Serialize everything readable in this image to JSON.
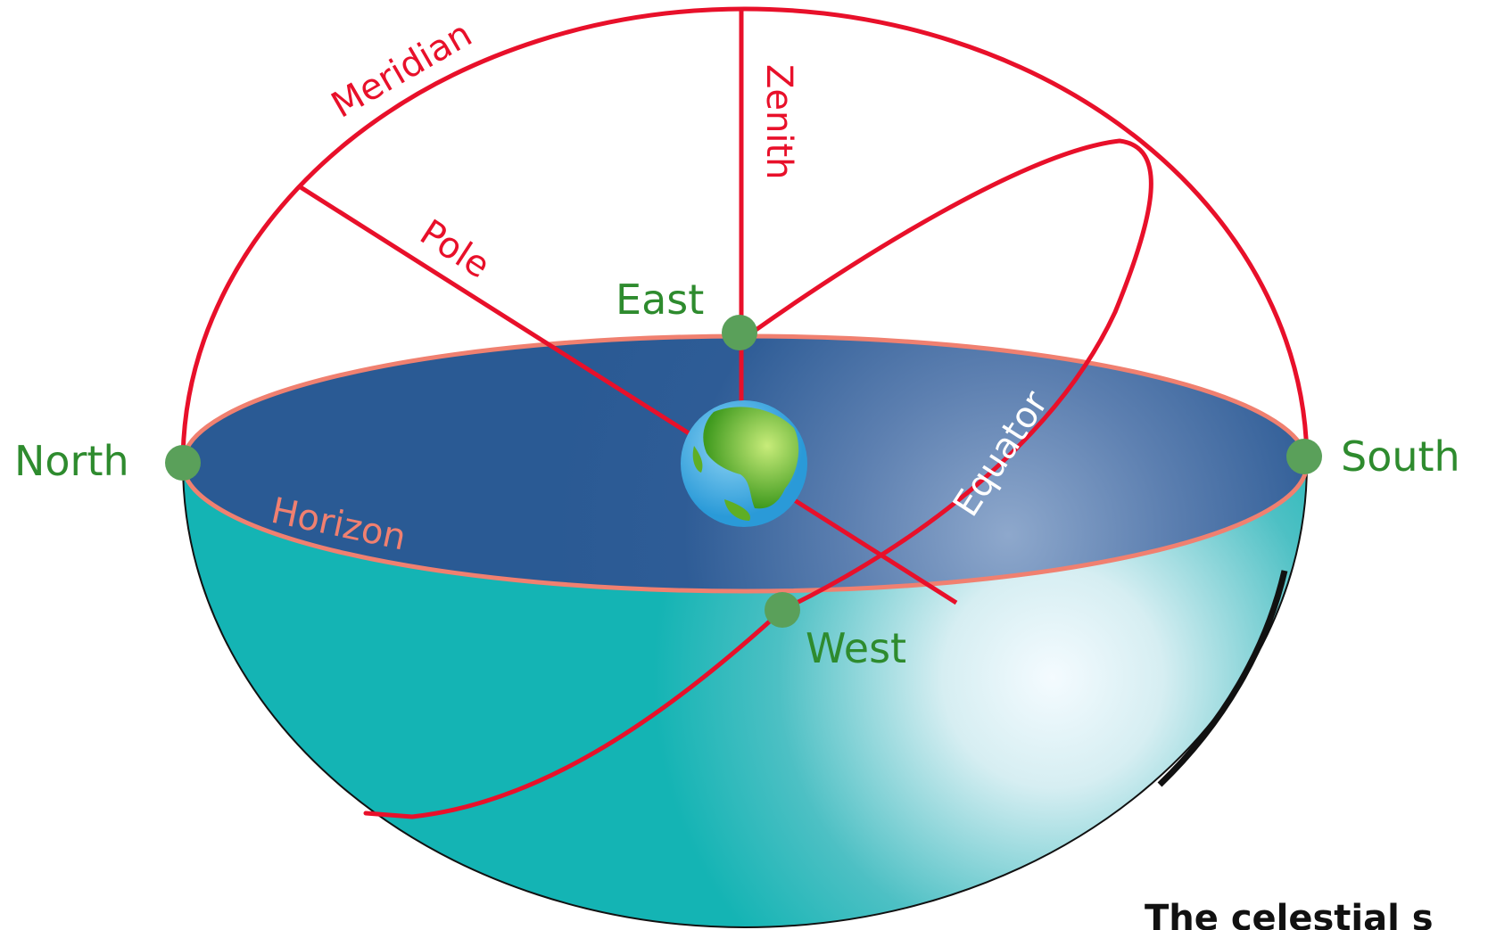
{
  "labels": {
    "meridian": "Meridian",
    "zenith": "Zenith",
    "pole": "Pole",
    "east": "East",
    "west": "West",
    "north": "North",
    "south": "South",
    "horizon": "Horizon",
    "equator": "Equator"
  },
  "caption": "The celestial s",
  "colors": {
    "circle_lines": "#e8102a",
    "cardinal_labels": "#2e8b2e",
    "cardinal_dots": "#5aa05a",
    "horizon_rim": "#f08070",
    "horizon_plane": "#2a5a94",
    "lower_hemisphere": "#14b4b4",
    "earth_ocean": "#3aa6e0",
    "earth_land": "#6fbf2a"
  }
}
